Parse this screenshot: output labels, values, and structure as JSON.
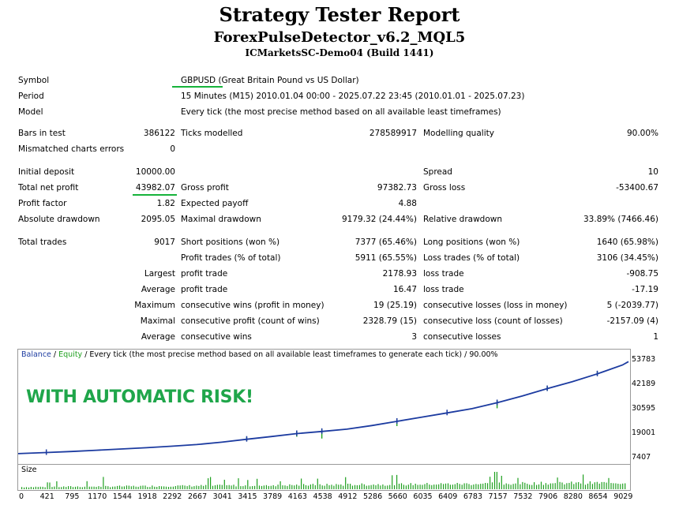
{
  "header": {
    "title": "Strategy Tester Report",
    "expert": "ForexPulseDetector_v6.2_MQL5",
    "server": "ICMarketsSC-Demo04 (Build 1441)"
  },
  "settings": {
    "symbol_label": "Symbol",
    "symbol_value": "GBPUSD (Great Britain Pound vs US Dollar)",
    "period_label": "Period",
    "period_value": "15 Minutes (M15) 2010.01.04 00:00 - 2025.07.22 23:45 (2010.01.01 - 2025.07.23)",
    "model_label": "Model",
    "model_value": "Every tick (the most precise method based on all available least timeframes)"
  },
  "stats": {
    "bars_label": "Bars in test",
    "bars_value": "386122",
    "ticks_label": "Ticks modelled",
    "ticks_value": "278589917",
    "mq_label": "Modelling quality",
    "mq_value": "90.00%",
    "mismatch_label": "Mismatched charts errors",
    "mismatch_value": "0",
    "deposit_label": "Initial deposit",
    "deposit_value": "10000.00",
    "spread_label": "Spread",
    "spread_value": "10",
    "netprofit_label": "Total net profit",
    "netprofit_value": "43982.07",
    "grossprofit_label": "Gross profit",
    "grossprofit_value": "97382.73",
    "grossloss_label": "Gross loss",
    "grossloss_value": "-53400.67",
    "pf_label": "Profit factor",
    "pf_value": "1.82",
    "ep_label": "Expected payoff",
    "ep_value": "4.88",
    "absdd_label": "Absolute drawdown",
    "absdd_value": "2095.05",
    "maxdd_label": "Maximal drawdown",
    "maxdd_value": "9179.32 (24.44%)",
    "reldd_label": "Relative drawdown",
    "reldd_value": "33.89% (7466.46)",
    "trades_label": "Total trades",
    "trades_value": "9017",
    "short_label": "Short positions (won %)",
    "short_value": "7377 (65.46%)",
    "long_label": "Long positions (won %)",
    "long_value": "1640 (65.98%)",
    "pt_label": "Profit trades (% of total)",
    "pt_value": "5911 (65.55%)",
    "lt_label": "Loss trades (% of total)",
    "lt_value": "3106 (34.45%)",
    "largest_label": "Largest",
    "largest_pt_label": "profit trade",
    "largest_pt_value": "2178.93",
    "largest_lt_label": "loss trade",
    "largest_lt_value": "-908.75",
    "average_label": "Average",
    "average_pt_label": "profit trade",
    "average_pt_value": "16.47",
    "average_lt_label": "loss trade",
    "average_lt_value": "-17.19",
    "maximum_label": "Maximum",
    "max_cw_label": "consecutive wins (profit in money)",
    "max_cw_value": "19 (25.19)",
    "max_cl_label": "consecutive losses (loss in money)",
    "max_cl_value": "5 (-2039.77)",
    "maximal_label": "Maximal",
    "maximal_cp_label": "consecutive profit (count of wins)",
    "maximal_cp_value": "2328.79 (15)",
    "maximal_cl_label": "consecutive loss (count of losses)",
    "maximal_cl_value": "-2157.09 (4)",
    "avg2_label": "Average",
    "avg_cw_label": "consecutive wins",
    "avg_cw_value": "3",
    "avg_cl_label": "consecutive losses",
    "avg_cl_value": "1"
  },
  "chart": {
    "legend_balance": "Balance",
    "legend_sep": " / ",
    "legend_equity": "Equity",
    "legend_rest": " / Every tick (the most precise method based on all available least timeframes to generate each tick) / 90.00%",
    "overlay_text": "WITH AUTOMATIC RISK!",
    "volume_label": "Size",
    "balance_color": "#1c3ba0",
    "equity_color": "#1fa01f",
    "overlay_color": "#1fa64a"
  },
  "chart_data": {
    "type": "line",
    "title": "",
    "ylabel": "",
    "xlabel": "",
    "ylim": [
      7407,
      53783
    ],
    "yticks": [
      "53783",
      "42189",
      "30595",
      "19001",
      "7407"
    ],
    "xticks": [
      "0",
      "421",
      "795",
      "1170",
      "1544",
      "1918",
      "2292",
      "2667",
      "3041",
      "3415",
      "3789",
      "4163",
      "4538",
      "4912",
      "5286",
      "5660",
      "6035",
      "6409",
      "6783",
      "7157",
      "7532",
      "7906",
      "8280",
      "8654",
      "9029"
    ],
    "xlim": [
      0,
      9120
    ],
    "series": [
      {
        "name": "Balance",
        "x": [
          0,
          421,
          795,
          1170,
          1544,
          1918,
          2292,
          2667,
          3041,
          3415,
          3789,
          4163,
          4538,
          4912,
          5286,
          5660,
          6035,
          6409,
          6783,
          7157,
          7532,
          7906,
          8280,
          8654,
          9029,
          9120
        ],
        "values": [
          9700,
          10200,
          10700,
          11300,
          11900,
          12500,
          13200,
          14000,
          15100,
          16500,
          17800,
          19200,
          20200,
          21300,
          23000,
          25000,
          27000,
          29000,
          31000,
          33800,
          37000,
          40500,
          43800,
          47500,
          51700,
          53300
        ]
      }
    ],
    "volume_label": "Size"
  }
}
